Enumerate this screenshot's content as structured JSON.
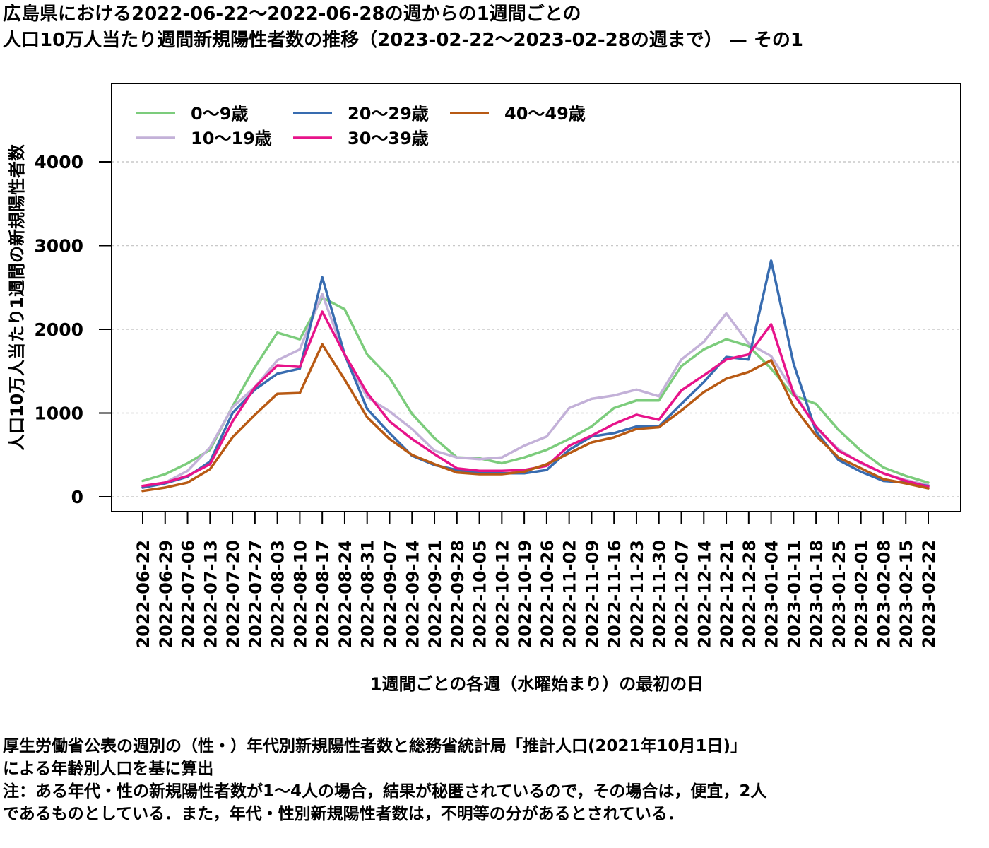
{
  "title_lines": [
    "広島県における2022-06-22〜2022-06-28の週からの1週間ごとの",
    "人口10万人当たり週間新規陽性者数の推移（2023-02-22〜2023-02-28の週まで） — その1"
  ],
  "notes": [
    "厚生労働省公表の週別の（性・）年代別新規陽性者数と総務省統計局「推計人口(2021年10月1日)」",
    "による年齢別人口を基に算出",
    "注：ある年代・性の新規陽性者数が1〜4人の場合，結果が秘匿されているので，その場合は，便宜，2人",
    "であるものとしている．また，年代・性別新規陽性者数は，不明等の分があるとされている．"
  ],
  "chart_data": {
    "type": "line",
    "xlabel": "1週間ごとの各週（水曜始まり）の最初の日",
    "ylabel": "人口10万人当たり1週間の新規陽性者数",
    "ylim": [
      0,
      4900
    ],
    "yticks": [
      0,
      1000,
      2000,
      3000,
      4000
    ],
    "grid": true,
    "legend_position": "top-left",
    "x": [
      "2022-06-22",
      "2022-06-29",
      "2022-07-06",
      "2022-07-13",
      "2022-07-20",
      "2022-07-27",
      "2022-08-03",
      "2022-08-10",
      "2022-08-17",
      "2022-08-24",
      "2022-08-31",
      "2022-09-07",
      "2022-09-14",
      "2022-09-21",
      "2022-09-28",
      "2022-10-05",
      "2022-10-12",
      "2022-10-19",
      "2022-10-26",
      "2022-11-02",
      "2022-11-09",
      "2022-11-16",
      "2022-11-23",
      "2022-11-30",
      "2022-12-07",
      "2022-12-14",
      "2022-12-21",
      "2022-12-28",
      "2023-01-04",
      "2023-01-11",
      "2023-01-18",
      "2023-01-25",
      "2023-02-01",
      "2023-02-08",
      "2023-02-15",
      "2023-02-22"
    ],
    "series": [
      {
        "name": "0〜9歳",
        "color": "#7ccc7c",
        "values": [
          190,
          270,
          400,
          560,
          1080,
          1550,
          1960,
          1880,
          2380,
          2240,
          1700,
          1420,
          990,
          700,
          470,
          460,
          400,
          470,
          560,
          690,
          840,
          1060,
          1150,
          1150,
          1560,
          1760,
          1880,
          1800,
          1530,
          1210,
          1110,
          800,
          550,
          350,
          250,
          170
        ]
      },
      {
        "name": "10〜19歳",
        "color": "#c3b1d8",
        "values": [
          120,
          170,
          310,
          590,
          1070,
          1310,
          1630,
          1760,
          2420,
          1690,
          1190,
          1020,
          810,
          550,
          470,
          450,
          470,
          610,
          720,
          1060,
          1170,
          1210,
          1280,
          1200,
          1640,
          1850,
          2190,
          1830,
          1680,
          1260,
          820,
          570,
          400,
          280,
          200,
          140
        ]
      },
      {
        "name": "20〜29歳",
        "color": "#386cb0",
        "values": [
          110,
          160,
          240,
          420,
          1000,
          1280,
          1470,
          1530,
          2620,
          1700,
          1050,
          760,
          490,
          380,
          320,
          290,
          280,
          280,
          320,
          560,
          720,
          760,
          840,
          840,
          1110,
          1370,
          1670,
          1640,
          2820,
          1590,
          780,
          440,
          300,
          190,
          170,
          130
        ]
      },
      {
        "name": "30〜39歳",
        "color": "#e7138a",
        "values": [
          130,
          170,
          250,
          390,
          900,
          1310,
          1570,
          1550,
          2210,
          1700,
          1240,
          900,
          690,
          510,
          340,
          310,
          310,
          320,
          370,
          610,
          730,
          870,
          980,
          920,
          1270,
          1450,
          1640,
          1700,
          2060,
          1230,
          840,
          550,
          410,
          280,
          190,
          120
        ]
      },
      {
        "name": "40〜49歳",
        "color": "#b85a14",
        "values": [
          70,
          110,
          170,
          330,
          710,
          980,
          1230,
          1240,
          1820,
          1400,
          950,
          690,
          500,
          390,
          290,
          270,
          270,
          300,
          390,
          520,
          650,
          710,
          810,
          830,
          1030,
          1250,
          1410,
          1490,
          1630,
          1080,
          730,
          470,
          340,
          210,
          160,
          100
        ]
      }
    ]
  }
}
